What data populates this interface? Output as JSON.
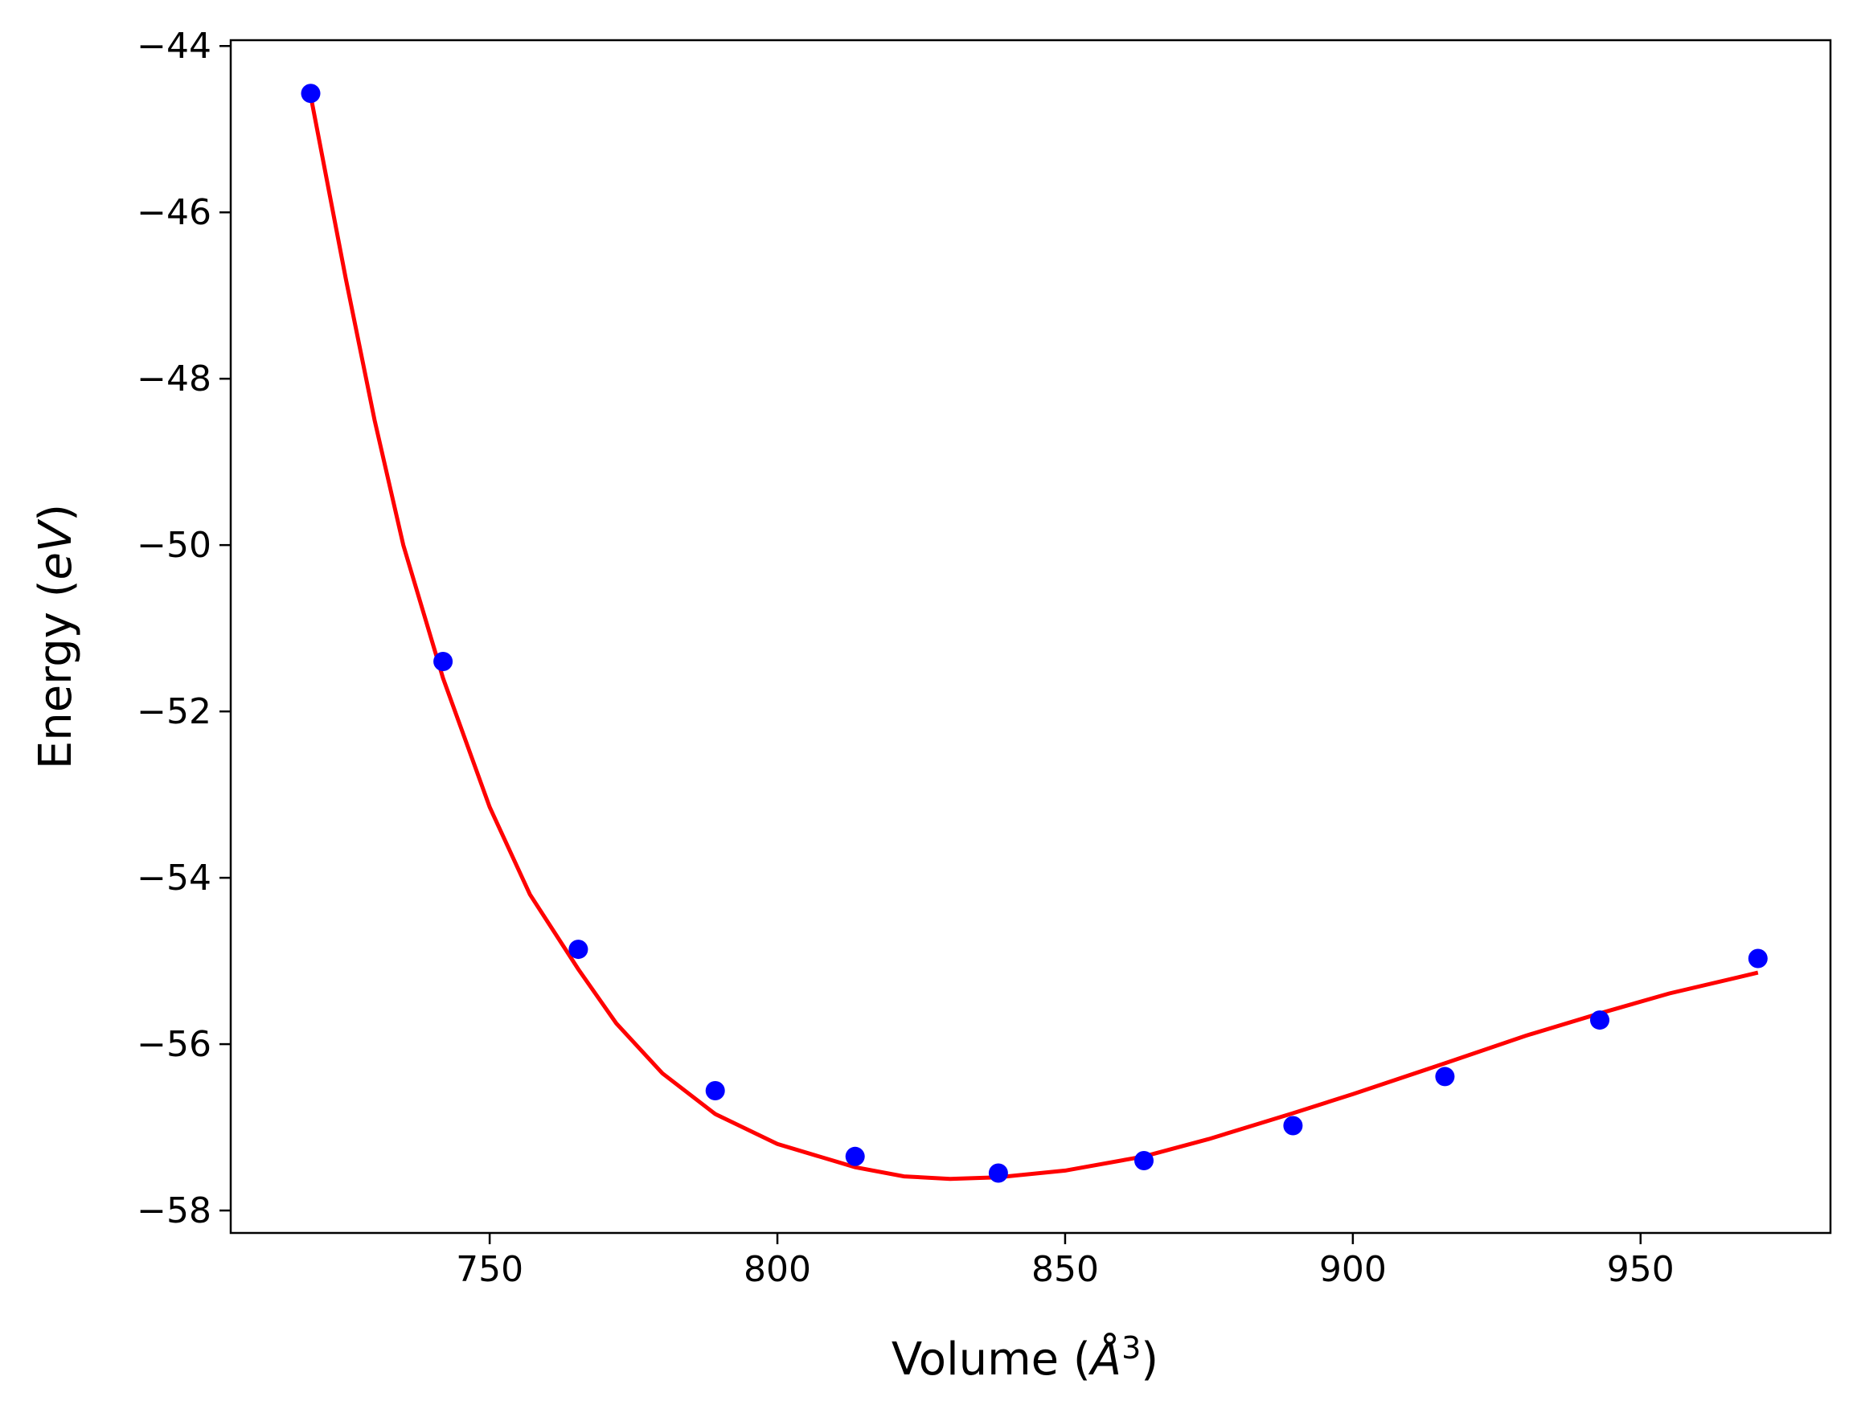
{
  "chart_data": {
    "type": "scatter",
    "xlabel": "Volume (Å³)",
    "xlabel_parts": {
      "prefix": "Volume (",
      "symbol": "Å",
      "exponent": "3",
      "suffix": ")"
    },
    "ylabel": "Energy (eV)",
    "ylabel_parts": {
      "prefix": "Energy (",
      "unit": "eV",
      "suffix": ")"
    },
    "xlim": [
      705,
      983
    ],
    "ylim": [
      -58.27,
      -43.93
    ],
    "xticks": [
      750,
      800,
      850,
      900,
      950
    ],
    "xtick_labels": [
      "750",
      "800",
      "850",
      "900",
      "950"
    ],
    "yticks": [
      -44,
      -46,
      -48,
      -50,
      -52,
      -54,
      -56,
      -58
    ],
    "ytick_labels": [
      "−44",
      "−46",
      "−48",
      "−50",
      "−52",
      "−54",
      "−56",
      "−58"
    ],
    "grid": false,
    "series": [
      {
        "kind": "points",
        "color": "#0000ff",
        "x": [
          718.9,
          741.9,
          765.4,
          789.2,
          813.5,
          838.4,
          863.7,
          889.6,
          916.0,
          942.9,
          970.4
        ],
        "y": [
          -44.57,
          -51.4,
          -54.86,
          -56.56,
          -57.35,
          -57.55,
          -57.4,
          -56.98,
          -56.39,
          -55.71,
          -54.97
        ]
      },
      {
        "kind": "fit-curve",
        "color": "#ff0000",
        "x": [
          718.9,
          725,
          730,
          735,
          741.9,
          750,
          757,
          765.4,
          772,
          780,
          789.2,
          800,
          813.5,
          822,
          830,
          838.4,
          850,
          863.7,
          875,
          889.6,
          900,
          916.0,
          930,
          942.9,
          955,
          970.4
        ],
        "y": [
          -44.6,
          -46.8,
          -48.5,
          -50.0,
          -51.6,
          -53.15,
          -54.2,
          -55.1,
          -55.75,
          -56.35,
          -56.84,
          -57.2,
          -57.48,
          -57.59,
          -57.62,
          -57.6,
          -57.52,
          -57.35,
          -57.14,
          -56.83,
          -56.6,
          -56.23,
          -55.9,
          -55.63,
          -55.39,
          -55.14
        ]
      }
    ]
  }
}
